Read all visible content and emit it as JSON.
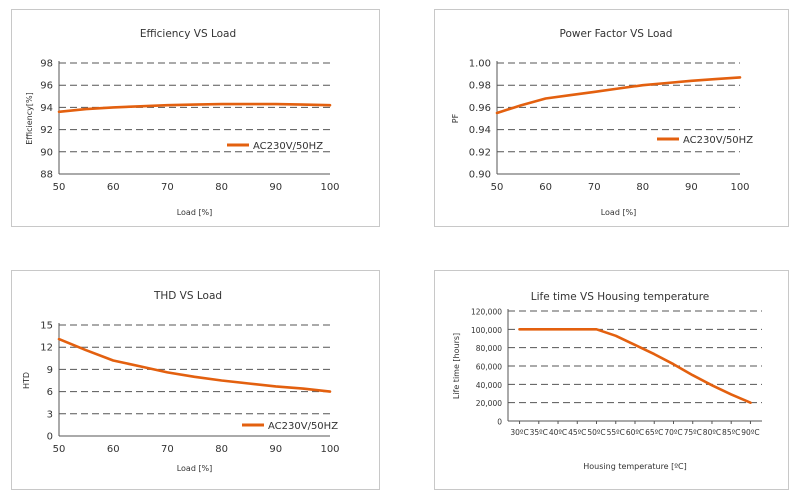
{
  "accent": "#e3600f",
  "chart_data": [
    {
      "type": "line",
      "title": "Efficiency VS Load",
      "xlabel": "Load [%]",
      "ylabel": "Efficiency[%]",
      "x_ticks": [
        "50",
        "60",
        "70",
        "80",
        "90",
        "100"
      ],
      "y_ticks": [
        "98",
        "96",
        "94",
        "92",
        "90",
        "88"
      ],
      "xlim": [
        50,
        100
      ],
      "ylim": [
        88,
        98
      ],
      "grid": true,
      "legend": "bottom-right",
      "series": [
        {
          "name": "AC230V/50HZ",
          "x": [
            50,
            55,
            60,
            65,
            70,
            75,
            80,
            85,
            90,
            95,
            100
          ],
          "y": [
            93.6,
            93.85,
            94.0,
            94.1,
            94.2,
            94.25,
            94.3,
            94.3,
            94.3,
            94.25,
            94.2
          ]
        }
      ]
    },
    {
      "type": "line",
      "title": "Power Factor VS Load",
      "xlabel": "Load [%]",
      "ylabel": "PF",
      "x_ticks": [
        "50",
        "60",
        "70",
        "80",
        "90",
        "100"
      ],
      "y_ticks": [
        "1.00",
        "0.98",
        "0.96",
        "0.94",
        "0.92",
        "0.90"
      ],
      "xlim": [
        50,
        100
      ],
      "ylim": [
        0.9,
        1.0
      ],
      "grid": true,
      "legend": "middle-right",
      "series": [
        {
          "name": "AC230V/50HZ",
          "x": [
            50,
            55,
            60,
            65,
            70,
            75,
            80,
            85,
            90,
            95,
            100
          ],
          "y": [
            0.955,
            0.962,
            0.968,
            0.971,
            0.974,
            0.977,
            0.98,
            0.982,
            0.984,
            0.9855,
            0.987
          ]
        }
      ]
    },
    {
      "type": "line",
      "title": "THD VS Load",
      "xlabel": "Load [%]",
      "ylabel": "HTD",
      "x_ticks": [
        "50",
        "60",
        "70",
        "80",
        "90",
        "100"
      ],
      "y_ticks": [
        "15",
        "12",
        "9",
        "6",
        "3",
        "0"
      ],
      "xlim": [
        50,
        100
      ],
      "ylim": [
        0,
        15
      ],
      "grid": true,
      "legend": "bottom-right",
      "series": [
        {
          "name": "AC230V/50HZ",
          "x": [
            50,
            55,
            60,
            65,
            70,
            75,
            80,
            85,
            90,
            95,
            100
          ],
          "y": [
            13.1,
            11.6,
            10.2,
            9.4,
            8.6,
            8.0,
            7.5,
            7.1,
            6.7,
            6.4,
            6.0
          ]
        }
      ]
    },
    {
      "type": "line",
      "title": "Life time VS Housing temperature",
      "xlabel": "Housing temperature [ºC]",
      "ylabel": "Life time [hours]",
      "x_ticks": [
        "30ºC",
        "35ºC",
        "40ºC",
        "45ºC",
        "50ºC",
        "55ºC",
        "60ºC",
        "65ºC",
        "70ºC",
        "75ºC",
        "80ºC",
        "85ºC",
        "90ºC"
      ],
      "y_ticks": [
        "120,000",
        "100,000",
        "80,000",
        "60,000",
        "40,000",
        "20,000",
        "0"
      ],
      "xlim": [
        27,
        93
      ],
      "ylim": [
        0,
        120000
      ],
      "grid": true,
      "series": [
        {
          "name": "Life time",
          "x": [
            30,
            35,
            40,
            45,
            50,
            55,
            60,
            65,
            70,
            75,
            80,
            85,
            90
          ],
          "y": [
            100000,
            100000,
            100000,
            100000,
            100000,
            93000,
            83000,
            73000,
            62000,
            50000,
            39000,
            29000,
            20000
          ]
        }
      ]
    }
  ]
}
